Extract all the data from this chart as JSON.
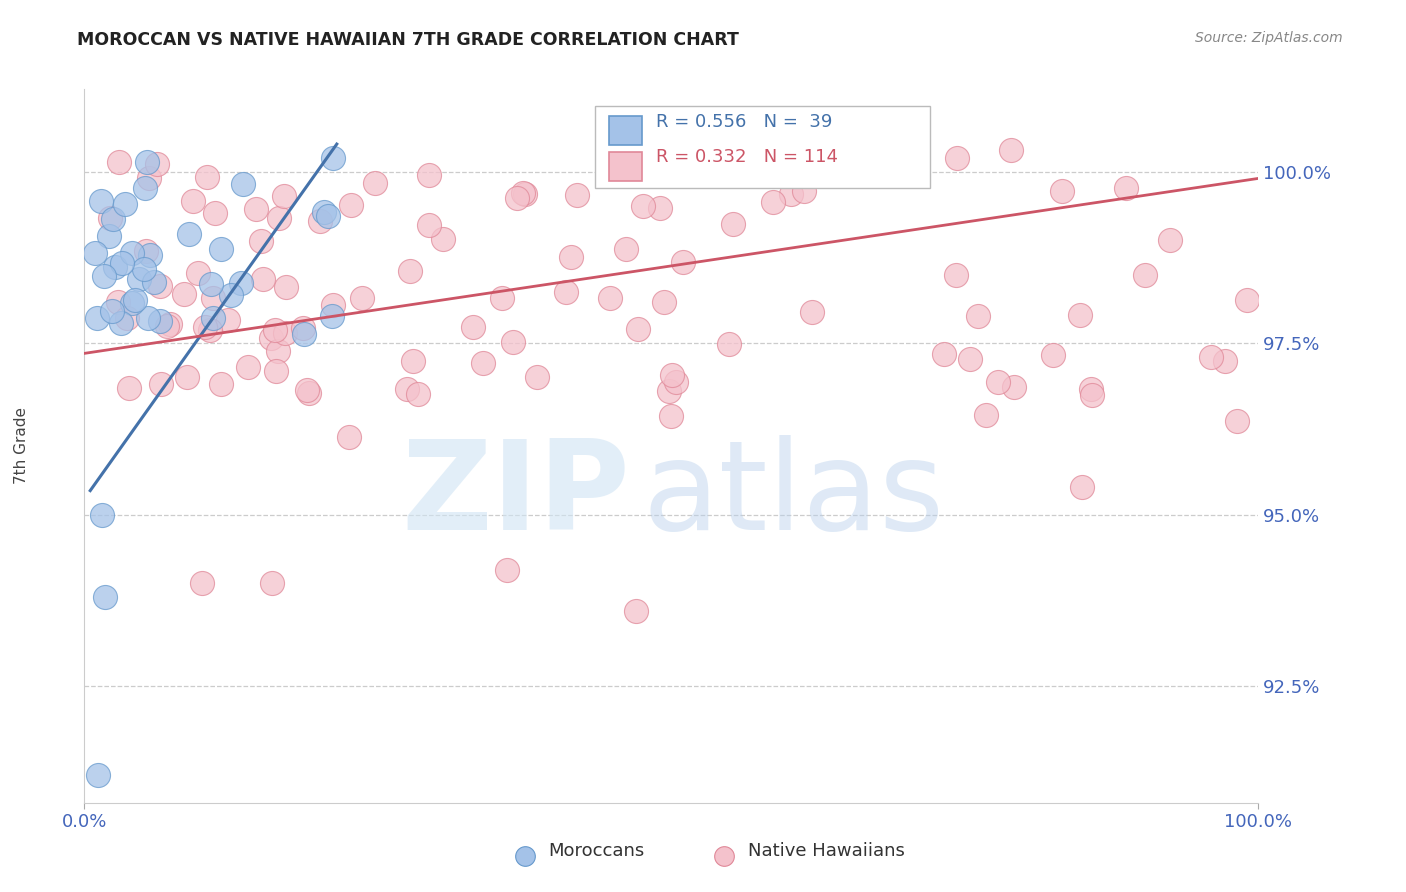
{
  "title": "MOROCCAN VS NATIVE HAWAIIAN 7TH GRADE CORRELATION CHART",
  "source": "Source: ZipAtlas.com",
  "ylabel": "7th Grade",
  "moroccan_R": 0.556,
  "moroccan_N": 39,
  "hawaiian_R": 0.332,
  "hawaiian_N": 114,
  "moroccan_fill": "#a4c2e8",
  "moroccan_edge": "#6699cc",
  "hawaiian_fill": "#f4c2cc",
  "hawaiian_edge": "#e08898",
  "trend_moroccan": "#4472aa",
  "trend_hawaiian": "#cc5566",
  "axis_label_color": "#4466bb",
  "title_color": "#222222",
  "source_color": "#888888",
  "grid_color": "#cccccc",
  "xlim": [
    0.0,
    1.0
  ],
  "ylim": [
    0.908,
    1.012
  ],
  "yticks": [
    1.0,
    0.975,
    0.95,
    0.925
  ],
  "ytick_labels": [
    "100.0%",
    "97.5%",
    "95.0%",
    "92.5%"
  ],
  "legend_moroccan": "Moroccans",
  "legend_hawaiian": "Native Hawaiians",
  "mor_trend_x": [
    0.005,
    0.215
  ],
  "mor_trend_y": [
    0.9535,
    1.004
  ],
  "haw_trend_x": [
    0.0,
    1.0
  ],
  "haw_trend_y": [
    0.9735,
    0.999
  ]
}
